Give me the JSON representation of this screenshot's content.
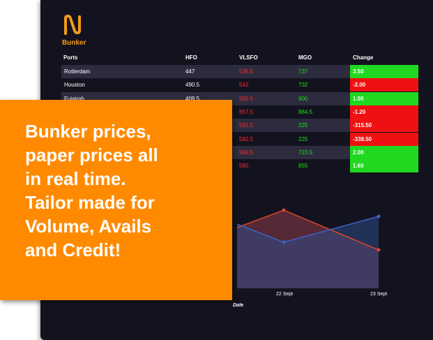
{
  "app": {
    "brand": "Bunker",
    "accent": "#f39a1d"
  },
  "table": {
    "headers": [
      "Ports",
      "HFO",
      "VLSFO",
      "MGO",
      "Change"
    ],
    "rows": [
      {
        "port": "Rotterdam",
        "hfo": "447",
        "vlsfo": "536.5",
        "mgo": "737",
        "change": "3.50",
        "trend": "pos"
      },
      {
        "port": "Houston",
        "hfo": "490.5",
        "vlsfo": "542",
        "mgo": "732",
        "change": "-2.00",
        "trend": "neg"
      },
      {
        "port": "Fujairah",
        "hfo": "409.5",
        "vlsfo": "590.5",
        "mgo": "900",
        "change": "1.00",
        "trend": "pos"
      },
      {
        "port": "",
        "hfo": "",
        "vlsfo": "657.5",
        "mgo": "884.5",
        "change": "-1.20",
        "trend": "neg"
      },
      {
        "port": "",
        "hfo": "",
        "vlsfo": "581.5",
        "mgo": "225",
        "change": "-315.50",
        "trend": "neg"
      },
      {
        "port": "",
        "hfo": "",
        "vlsfo": "582.5",
        "mgo": "225",
        "change": "-338.50",
        "trend": "neg"
      },
      {
        "port": "",
        "hfo": "",
        "vlsfo": "599.5",
        "mgo": "723.5",
        "change": "2.00",
        "trend": "pos"
      },
      {
        "port": "",
        "hfo": "",
        "vlsfo": "580",
        "mgo": "855",
        "change": "1.60",
        "trend": "pos"
      }
    ]
  },
  "chart": {
    "x_ticks": [
      "22 Sept",
      "23 Sept"
    ],
    "xlabel": "Date",
    "colors": {
      "blue": "#3a63c8",
      "red": "#d8452a"
    }
  },
  "promo": {
    "lines": [
      "Bunker prices,",
      "paper prices all",
      "in real time.",
      "Tailor made for",
      "Volume, Avails",
      "and Credit!"
    ]
  }
}
